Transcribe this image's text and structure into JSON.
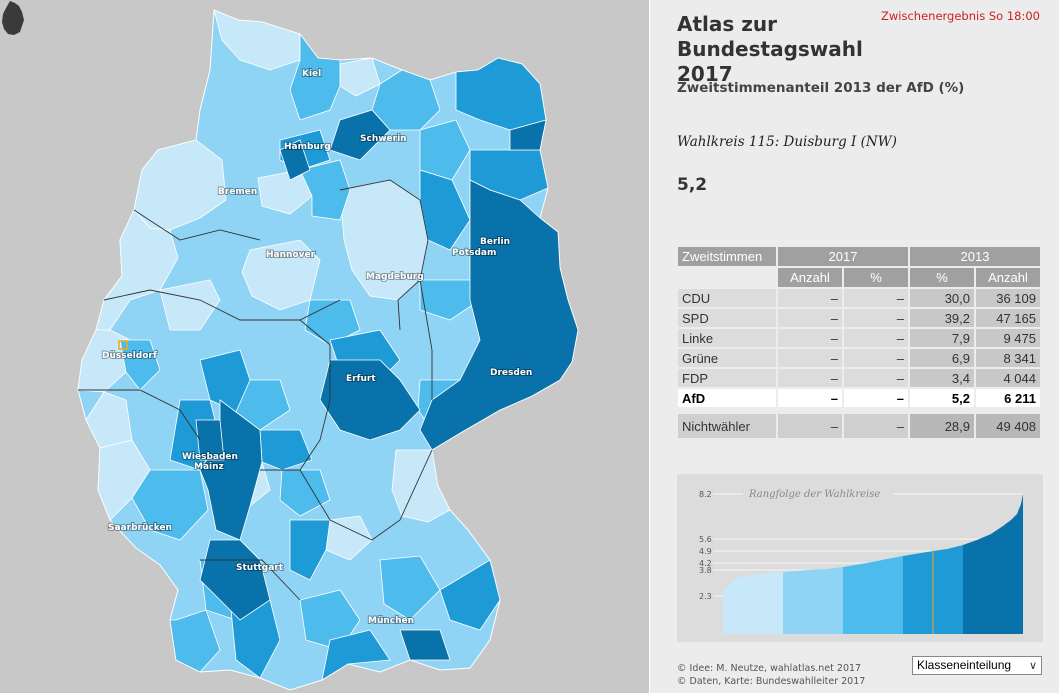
{
  "header": {
    "title": "Atlas zur Bundestagswahl 2017",
    "title_line1": "Atlas zur",
    "title_line2": "Bundestagswahl 2017",
    "interim": "Zwischenergebnis So 18:00",
    "subtitle": "Zweitstimmenanteil 2013 der AfD (%)"
  },
  "selection": {
    "district": "Wahlkreis 115: Duisburg I (NW)",
    "value": "5,2"
  },
  "table": {
    "header_label": "Zweitstimmen",
    "year_2017": "2017",
    "year_2013": "2013",
    "col_anzahl": "Anzahl",
    "col_pct": "%",
    "rows": [
      {
        "party": "CDU",
        "anzahl_2017": "–",
        "pct_2017": "–",
        "pct_2013": "30,0",
        "anzahl_2013": "36 109"
      },
      {
        "party": "SPD",
        "anzahl_2017": "–",
        "pct_2017": "–",
        "pct_2013": "39,2",
        "anzahl_2013": "47 165"
      },
      {
        "party": "Linke",
        "anzahl_2017": "–",
        "pct_2017": "–",
        "pct_2013": "7,9",
        "anzahl_2013": "9 475"
      },
      {
        "party": "Grüne",
        "anzahl_2017": "–",
        "pct_2017": "–",
        "pct_2013": "6,9",
        "anzahl_2013": "8 341"
      },
      {
        "party": "FDP",
        "anzahl_2017": "–",
        "pct_2017": "–",
        "pct_2013": "3,4",
        "anzahl_2013": "4 044"
      },
      {
        "party": "AfD",
        "anzahl_2017": "–",
        "pct_2017": "–",
        "pct_2013": "5,2",
        "anzahl_2013": "6 211"
      }
    ],
    "nichtwaehler": {
      "party": "Nichtwähler",
      "anzahl_2017": "–",
      "pct_2017": "–",
      "pct_2013": "28,9",
      "anzahl_2013": "49 408"
    }
  },
  "rank_chart": {
    "title": "Rangfolge der Wahlkreise",
    "ticks": [
      "8.2",
      "5.6",
      "4.9",
      "4.2",
      "3.8",
      "2.3"
    ],
    "class_colors": [
      "#c6e8f9",
      "#8fd3f5",
      "#4dbbec",
      "#1e9bd7",
      "#0a72aa"
    ],
    "selected_color": "#d2a23a"
  },
  "map": {
    "cities": [
      "Kiel",
      "Hamburg",
      "Schwerin",
      "Bremen",
      "Berlin",
      "Potsdam",
      "Hannover",
      "Magdeburg",
      "Düsseldorf",
      "Erfurt",
      "Dresden",
      "Wiesbaden",
      "Mainz",
      "Saarbrücken",
      "Stuttgart",
      "München"
    ],
    "colors": {
      "c1": "#c6e8f9",
      "c2": "#8fd3f5",
      "c3": "#4dbbec",
      "c4": "#1e9bd7",
      "c5": "#0a72aa",
      "selected": "#e8b020"
    }
  },
  "footer": {
    "credit1": "© Idee: M. Neutze, wahlatlas.net 2017",
    "credit2": "© Daten, Karte: Bundeswahlleiter 2017",
    "select_value": "Klasseneinteilung"
  }
}
